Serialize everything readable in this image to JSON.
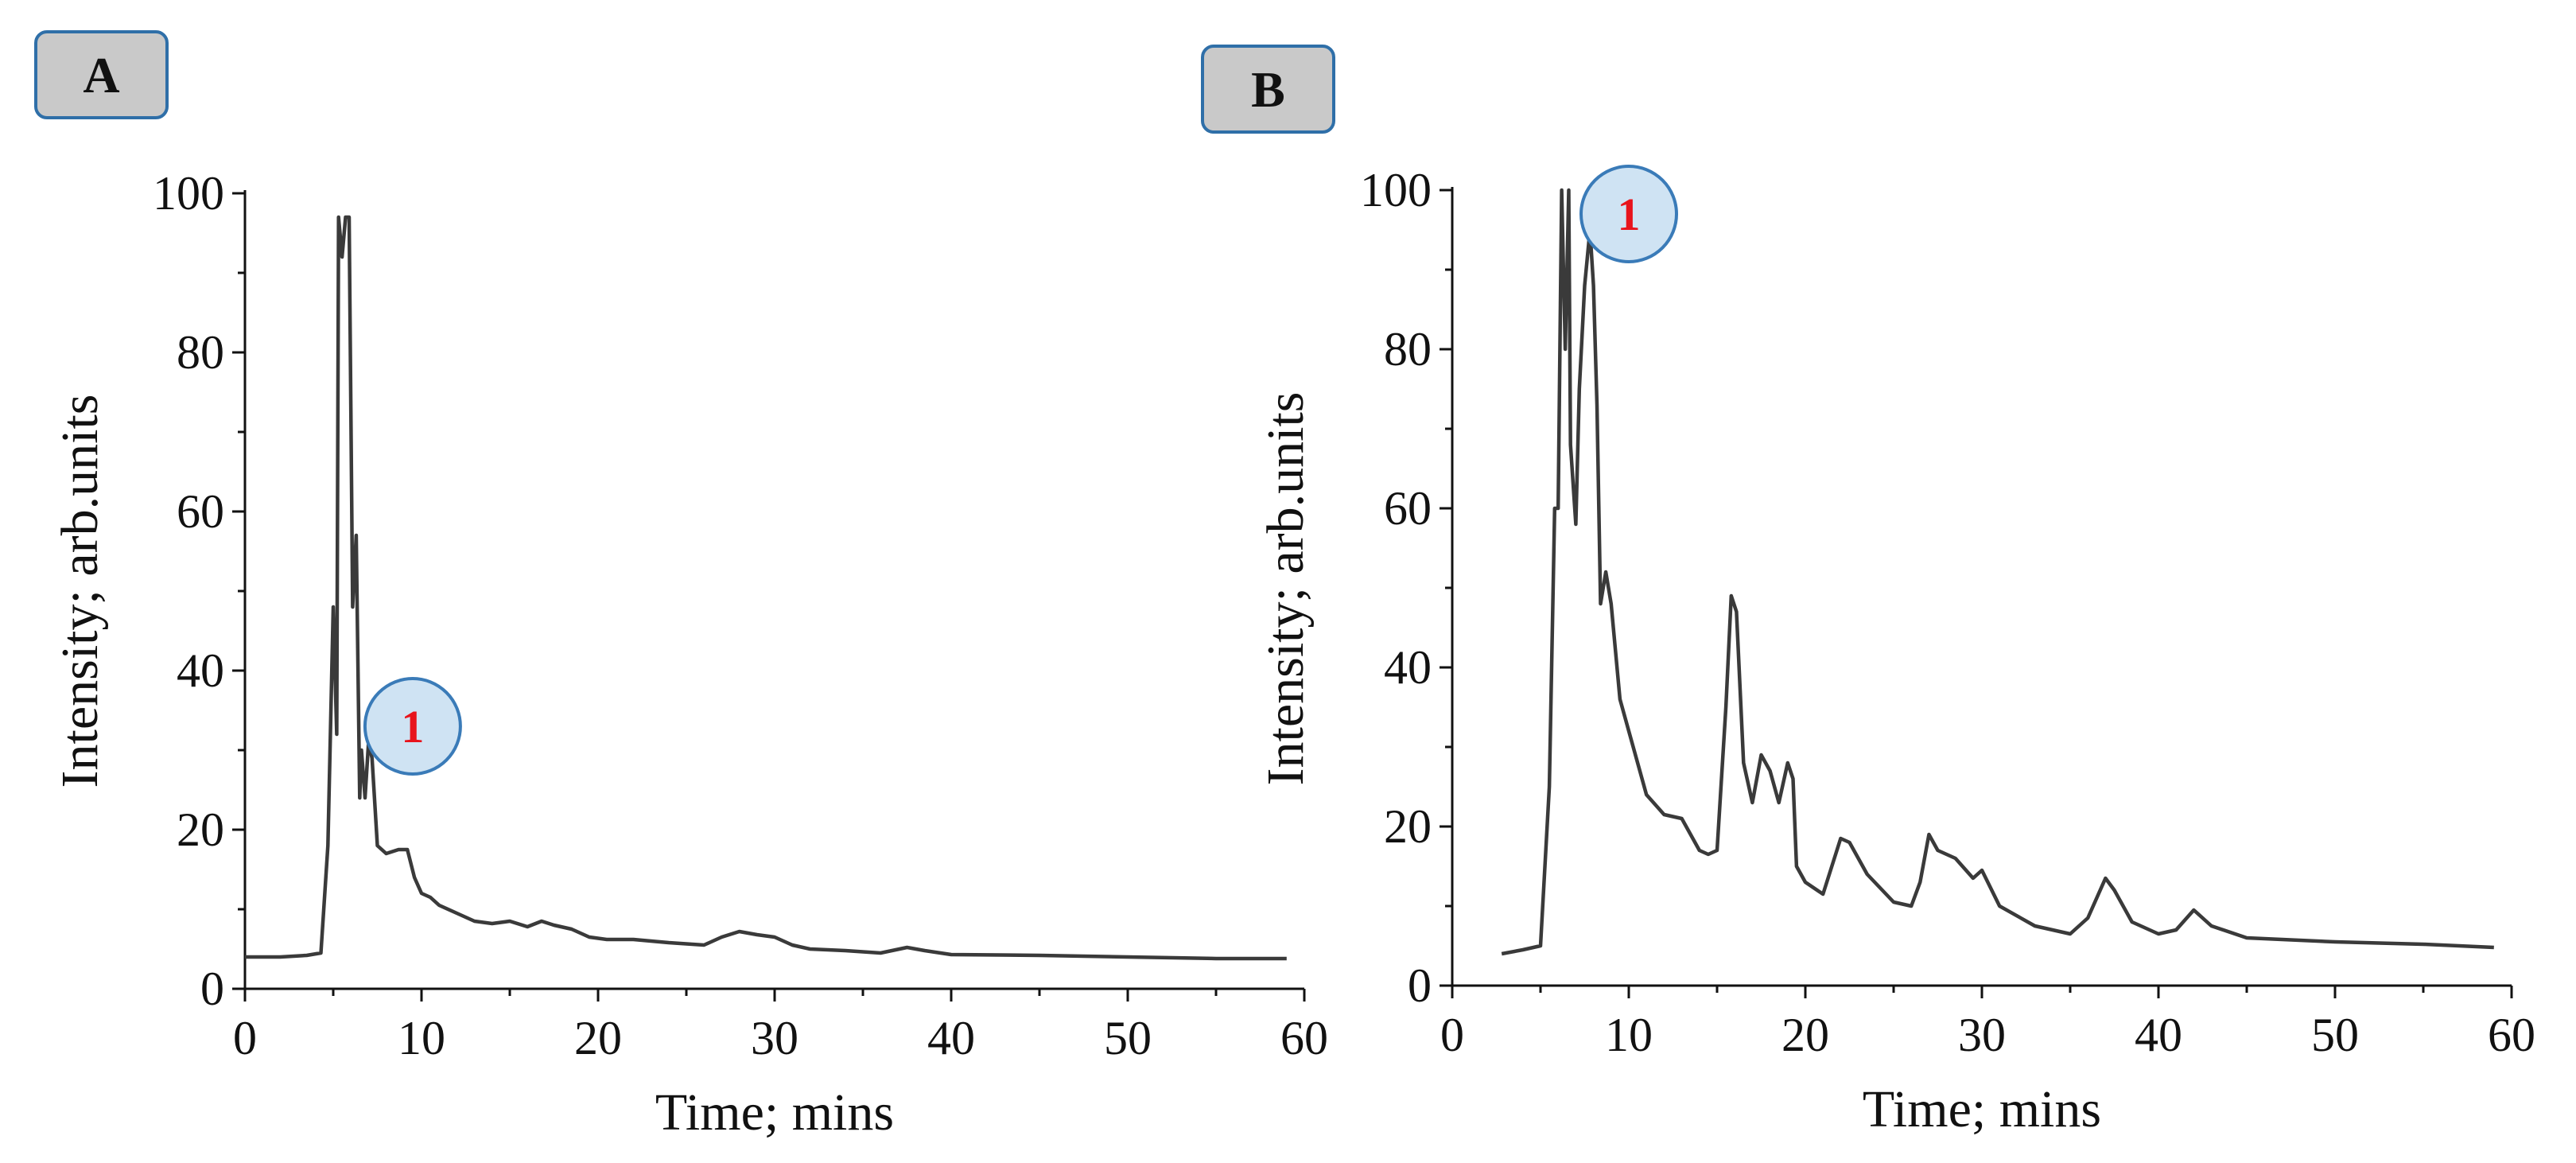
{
  "chart_data": [
    {
      "type": "line",
      "panel_label": "A",
      "xlabel": "Time; mins",
      "ylabel": "Intensity; arb.units",
      "xlim": [
        0,
        60
      ],
      "ylim": [
        0,
        100
      ],
      "xticks": [
        0,
        10,
        20,
        30,
        40,
        50,
        60
      ],
      "yticks": [
        0,
        20,
        40,
        60,
        80,
        100
      ],
      "grid": false,
      "annotations": [
        {
          "text": "1",
          "x": 9.5,
          "y": 33
        }
      ],
      "series": [
        {
          "x": [
            0,
            2,
            3.5,
            4.3,
            4.7,
            5.0,
            5.2,
            5.3,
            5.5,
            5.7,
            5.9,
            6.1,
            6.3,
            6.5,
            6.6,
            6.8,
            7.0,
            7.2,
            7.5,
            8.0,
            8.7,
            9.2,
            9.6,
            10.0,
            10.5,
            11.0,
            12.0,
            13.0,
            14.0,
            15.0,
            16.0,
            16.8,
            17.5,
            18.5,
            19.5,
            20.5,
            22.0,
            24.0,
            26.0,
            27.0,
            28.0,
            29.0,
            30.0,
            31.0,
            32.0,
            34.0,
            36.0,
            37.5,
            38.5,
            40.0,
            45.0,
            50.0,
            55.0,
            59.0
          ],
          "y": [
            4,
            4,
            4.2,
            4.5,
            18,
            48,
            32,
            97,
            92,
            97,
            97,
            48,
            57,
            24,
            30,
            24,
            31,
            29,
            18,
            17,
            17.5,
            17.5,
            14,
            12,
            11.5,
            10.5,
            9.5,
            8.5,
            8.2,
            8.5,
            7.8,
            8.5,
            8.0,
            7.5,
            6.5,
            6.2,
            6.2,
            5.8,
            5.5,
            6.5,
            7.2,
            6.8,
            6.5,
            5.5,
            5.0,
            4.8,
            4.5,
            5.2,
            4.8,
            4.3,
            4.2,
            4.0,
            3.8,
            3.8
          ]
        }
      ]
    },
    {
      "type": "line",
      "panel_label": "B",
      "xlabel": "Time; mins",
      "ylabel": "Intensity; arb.units",
      "xlim": [
        0,
        60
      ],
      "ylim": [
        0,
        100
      ],
      "xticks": [
        0,
        10,
        20,
        30,
        40,
        50,
        60
      ],
      "yticks": [
        0,
        20,
        40,
        60,
        80,
        100
      ],
      "grid": false,
      "annotations": [
        {
          "text": "1",
          "x": 10,
          "y": 97
        }
      ],
      "series": [
        {
          "x": [
            2.8,
            4.0,
            5.0,
            5.5,
            5.8,
            6.0,
            6.2,
            6.4,
            6.6,
            6.7,
            7.0,
            7.2,
            7.5,
            7.8,
            8.0,
            8.2,
            8.4,
            8.7,
            9.0,
            9.5,
            10.0,
            10.5,
            11.0,
            12.0,
            13.0,
            14.0,
            14.5,
            15.0,
            15.5,
            15.8,
            16.1,
            16.5,
            17.0,
            17.5,
            18.0,
            18.5,
            19.0,
            19.3,
            19.5,
            20.0,
            21.0,
            22.0,
            22.5,
            23.5,
            25.0,
            26.0,
            26.5,
            27.0,
            27.5,
            28.5,
            29.5,
            30.0,
            31.0,
            33.0,
            35.0,
            36.0,
            37.0,
            37.5,
            38.5,
            40.0,
            41.0,
            42.0,
            43.0,
            45.0,
            50.0,
            55.0,
            59.0
          ],
          "y": [
            4,
            4.5,
            5,
            25,
            60,
            60,
            100,
            80,
            100,
            68,
            58,
            75,
            88,
            95,
            88,
            73,
            48,
            52,
            48,
            36,
            32,
            28,
            24,
            21.5,
            21,
            17,
            16.5,
            17,
            35,
            49,
            47,
            28,
            23,
            29,
            27,
            23,
            28,
            26,
            15,
            13,
            11.5,
            18.5,
            18,
            14,
            10.5,
            10,
            13,
            19,
            17,
            16,
            13.5,
            14.5,
            10,
            7.5,
            6.5,
            8.5,
            13.5,
            12,
            8,
            6.5,
            7,
            9.5,
            7.5,
            6,
            5.5,
            5.2,
            4.8
          ]
        }
      ]
    }
  ]
}
